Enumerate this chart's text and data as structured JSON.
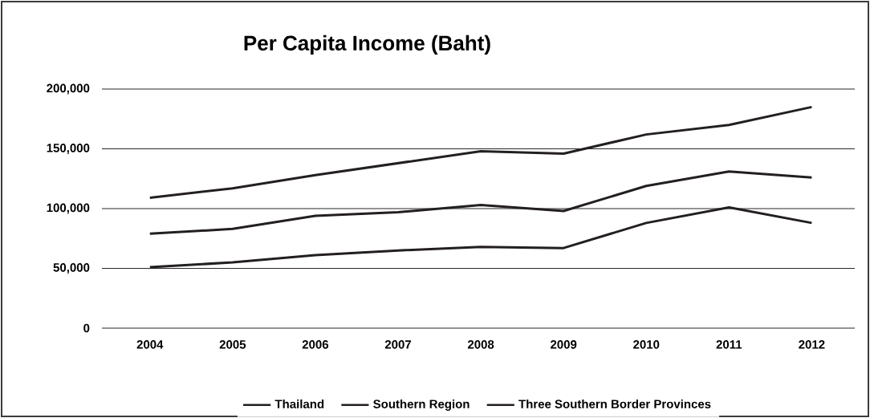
{
  "chart_data": {
    "type": "line",
    "title": "Per Capita Income (Baht)",
    "categories": [
      "2004",
      "2005",
      "2006",
      "2007",
      "2008",
      "2009",
      "2010",
      "2011",
      "2012"
    ],
    "series": [
      {
        "name": "Thailand",
        "color": "#231f20",
        "values": [
          109000,
          117000,
          128000,
          138000,
          148000,
          146000,
          162000,
          170000,
          185000
        ]
      },
      {
        "name": "Southern Region",
        "color": "#231f20",
        "values": [
          79000,
          83000,
          94000,
          97000,
          103000,
          98000,
          119000,
          131000,
          126000
        ]
      },
      {
        "name": "Three Southern Border Provinces",
        "color": "#231f20",
        "values": [
          51000,
          55000,
          61000,
          65000,
          68000,
          67000,
          88000,
          101000,
          88000
        ]
      }
    ],
    "ylim": [
      0,
      200000
    ],
    "yticks": [
      {
        "value": 0,
        "label": "0"
      },
      {
        "value": 50000,
        "label": "50,000"
      },
      {
        "value": 100000,
        "label": "100,000"
      },
      {
        "value": 150000,
        "label": "150,000"
      },
      {
        "value": 200000,
        "label": "200,000"
      }
    ],
    "grid": "y",
    "legend": "bottom"
  }
}
